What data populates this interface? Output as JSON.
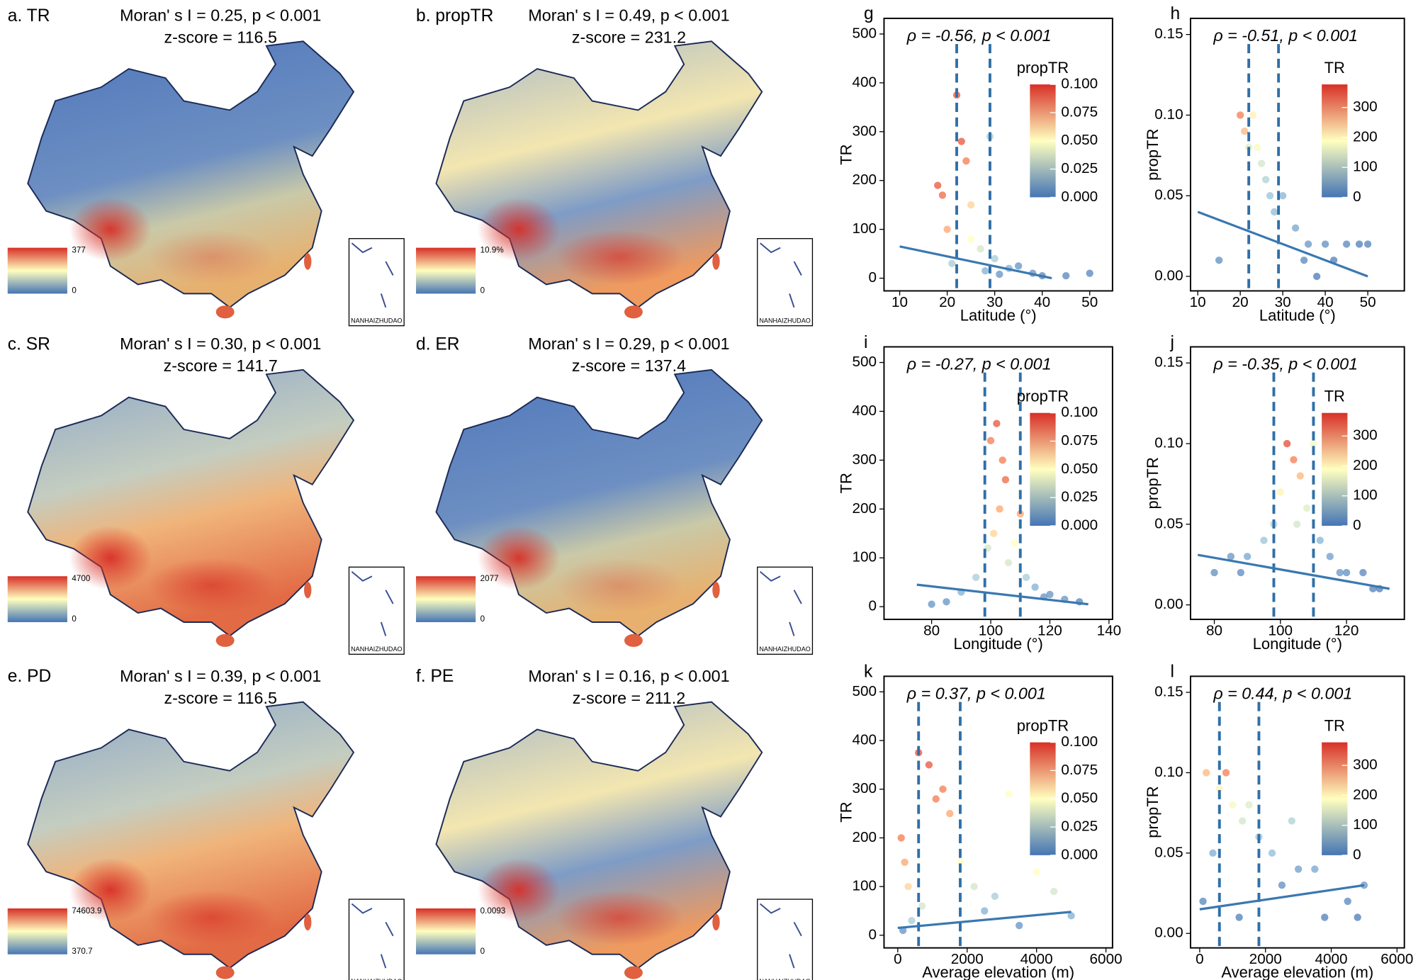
{
  "chart_data": [
    {
      "type": "map",
      "label": "a. TR",
      "stat": "Moran' s I = 0.25, p < 0.001",
      "zscore": "z-score = 116.5",
      "legend_max": "377",
      "legend_min": "0",
      "inset_label": "NANHAIZHUDAO"
    },
    {
      "type": "map",
      "label": "b. propTR",
      "stat": "Moran' s I = 0.49, p < 0.001",
      "zscore": "z-score = 231.2",
      "legend_max": "10.9%",
      "legend_min": "0",
      "inset_label": "NANHAIZHUDAO"
    },
    {
      "type": "map",
      "label": "c. SR",
      "stat": "Moran' s I = 0.30, p < 0.001",
      "zscore": "z-score = 141.7",
      "legend_max": "4700",
      "legend_min": "0",
      "inset_label": "NANHAIZHUDAO"
    },
    {
      "type": "map",
      "label": "d. ER",
      "stat": "Moran' s I = 0.29, p < 0.001",
      "zscore": "z-score = 137.4",
      "legend_max": "2077",
      "legend_min": "0",
      "inset_label": "NANHAIZHUDAO"
    },
    {
      "type": "map",
      "label": "e. PD",
      "stat": "Moran' s I = 0.39, p < 0.001",
      "zscore": "z-score = 116.5",
      "legend_max": "74603.9",
      "legend_min": "370.7",
      "inset_label": "NANHAIZHUDAO"
    },
    {
      "type": "map",
      "label": "f. PE",
      "stat": "Moran' s I = 0.16, p < 0.001",
      "zscore": "z-score = 211.2",
      "legend_max": "0.0093",
      "legend_min": "0",
      "inset_label": "NANHAIZHUDAO"
    },
    {
      "type": "scatter",
      "label": "g",
      "title": "ρ = -0.56, p < 0.001",
      "xlabel": "Latitude (°)",
      "ylabel": "TR",
      "xlim": [
        6.7,
        54.8
      ],
      "ylim": [
        -26,
        532
      ],
      "xticks": [
        10,
        20,
        30,
        40,
        50
      ],
      "yticks": [
        0,
        100,
        200,
        300,
        400,
        500
      ],
      "vlines": [
        22,
        29
      ],
      "fit": {
        "x": [
          10,
          42
        ],
        "y": [
          65,
          0
        ]
      },
      "colorbar": {
        "title": "propTR",
        "lim": [
          0,
          0.1
        ],
        "ticks": [
          {
            "value": 0,
            "label": "0.000"
          },
          {
            "value": 0.025,
            "label": "0.025"
          },
          {
            "value": 0.05,
            "label": "0.050"
          },
          {
            "value": 0.075,
            "label": "0.075"
          },
          {
            "value": 0.1,
            "label": "0.100"
          }
        ]
      },
      "x": [
        18,
        19,
        20,
        22,
        23,
        24,
        25,
        27,
        29,
        30,
        33,
        35,
        38,
        40,
        45,
        50,
        25,
        28,
        31,
        21
      ],
      "y": [
        190,
        170,
        100,
        375,
        280,
        240,
        150,
        60,
        290,
        40,
        20,
        25,
        10,
        5,
        5,
        10,
        80,
        15,
        8,
        30
      ],
      "c": [
        0.09,
        0.085,
        0.07,
        0.09,
        0.09,
        0.08,
        0.06,
        0.04,
        0.03,
        0.03,
        0.02,
        0.01,
        0.01,
        0.005,
        0.005,
        0.005,
        0.05,
        0.02,
        0.01,
        0.03
      ]
    },
    {
      "type": "scatter",
      "label": "h",
      "title": "ρ = -0.51, p < 0.001",
      "xlabel": "Latitude (°)",
      "ylabel": "propTR",
      "xlim": [
        8.3,
        58.6
      ],
      "ylim": [
        -0.009,
        0.16
      ],
      "xticks": [
        10,
        20,
        30,
        40,
        50
      ],
      "yticks": [
        {
          "value": 0,
          "label": "0.00"
        },
        {
          "value": 0.05,
          "label": "0.05"
        },
        {
          "value": 0.1,
          "label": "0.10"
        },
        {
          "value": 0.15,
          "label": "0.15"
        }
      ],
      "vlines": [
        22,
        29
      ],
      "fit": {
        "x": [
          10,
          50
        ],
        "y": [
          0.04,
          0
        ]
      },
      "colorbar": {
        "title": "TR",
        "lim": [
          0,
          377
        ],
        "ticks": [
          0,
          100,
          200,
          300
        ]
      },
      "x": [
        20,
        21,
        23,
        24,
        25,
        26,
        27,
        22,
        30,
        33,
        36,
        40,
        45,
        50,
        28,
        35,
        42,
        48,
        15,
        38
      ],
      "y": [
        0.1,
        0.09,
        0.1,
        0.08,
        0.07,
        0.06,
        0.05,
        0.08,
        0.05,
        0.03,
        0.02,
        0.02,
        0.02,
        0.02,
        0.04,
        0.01,
        0.01,
        0.02,
        0.01,
        0
      ],
      "c": [
        300,
        250,
        200,
        180,
        150,
        120,
        100,
        160,
        80,
        60,
        40,
        30,
        20,
        15,
        90,
        20,
        10,
        10,
        30,
        5
      ]
    },
    {
      "type": "scatter",
      "label": "i",
      "title": "ρ = -0.27, p < 0.001",
      "xlabel": "Longitude (°)",
      "ylabel": "TR",
      "xlim": [
        63.9,
        141.2
      ],
      "ylim": [
        -26,
        532
      ],
      "xticks": [
        80,
        100,
        120,
        140
      ],
      "yticks": [
        0,
        100,
        200,
        300,
        400,
        500
      ],
      "vlines": [
        98,
        110
      ],
      "fit": {
        "x": [
          75,
          133
        ],
        "y": [
          45,
          5
        ]
      },
      "colorbar": {
        "title": "propTR",
        "lim": [
          0,
          0.1
        ],
        "ticks": [
          {
            "value": 0,
            "label": "0.000"
          },
          {
            "value": 0.025,
            "label": "0.025"
          },
          {
            "value": 0.05,
            "label": "0.050"
          },
          {
            "value": 0.075,
            "label": "0.075"
          },
          {
            "value": 0.1,
            "label": "0.100"
          }
        ]
      },
      "x": [
        100,
        102,
        104,
        105,
        103,
        101,
        108,
        110,
        99,
        95,
        90,
        85,
        80,
        115,
        120,
        125,
        130,
        106,
        112,
        118
      ],
      "y": [
        340,
        375,
        300,
        260,
        200,
        150,
        130,
        190,
        120,
        60,
        30,
        10,
        5,
        40,
        25,
        15,
        10,
        90,
        60,
        20
      ],
      "c": [
        0.08,
        0.09,
        0.08,
        0.085,
        0.07,
        0.06,
        0.05,
        0.07,
        0.04,
        0.03,
        0.02,
        0.01,
        0.01,
        0.02,
        0.01,
        0.01,
        0.005,
        0.04,
        0.03,
        0.01
      ]
    },
    {
      "type": "scatter",
      "label": "j",
      "title": "ρ = -0.35, p < 0.001",
      "xlabel": "Longitude (°)",
      "ylabel": "propTR",
      "xlim": [
        72.8,
        137.5
      ],
      "ylim": [
        -0.009,
        0.16
      ],
      "xticks": [
        80,
        100,
        120
      ],
      "yticks": [
        {
          "value": 0,
          "label": "0.00"
        },
        {
          "value": 0.05,
          "label": "0.05"
        },
        {
          "value": 0.1,
          "label": "0.10"
        },
        {
          "value": 0.15,
          "label": "0.15"
        }
      ],
      "vlines": [
        98,
        110
      ],
      "fit": {
        "x": [
          75,
          133
        ],
        "y": [
          0.031,
          0.01
        ]
      },
      "colorbar": {
        "title": "TR",
        "lim": [
          0,
          377
        ],
        "ticks": [
          0,
          100,
          200,
          300
        ]
      },
      "x": [
        102,
        104,
        106,
        100,
        108,
        110,
        98,
        95,
        90,
        85,
        80,
        115,
        120,
        125,
        130,
        112,
        118,
        105,
        88,
        128
      ],
      "y": [
        0.1,
        0.09,
        0.08,
        0.07,
        0.06,
        0.1,
        0.05,
        0.04,
        0.03,
        0.03,
        0.02,
        0.03,
        0.02,
        0.02,
        0.01,
        0.04,
        0.02,
        0.05,
        0.02,
        0.01
      ],
      "c": [
        350,
        300,
        250,
        200,
        160,
        180,
        120,
        100,
        60,
        40,
        30,
        50,
        30,
        20,
        10,
        80,
        40,
        150,
        25,
        15
      ]
    },
    {
      "type": "scatter",
      "label": "k",
      "title": "ρ = 0.37, p < 0.001",
      "xlabel": "Average elevation (m)",
      "ylabel": "TR",
      "xlim": [
        -396,
        6190
      ],
      "ylim": [
        -26,
        532
      ],
      "xticks": [
        0,
        2000,
        4000,
        6000
      ],
      "yticks": [
        0,
        100,
        200,
        300,
        400,
        500
      ],
      "vlines": [
        600,
        1800
      ],
      "fit": {
        "x": [
          0,
          5000
        ],
        "y": [
          15,
          48
        ]
      },
      "colorbar": {
        "title": "propTR",
        "lim": [
          0,
          0.1
        ],
        "ticks": [
          {
            "value": 0,
            "label": "0.000"
          },
          {
            "value": 0.025,
            "label": "0.025"
          },
          {
            "value": 0.05,
            "label": "0.050"
          },
          {
            "value": 0.075,
            "label": "0.075"
          },
          {
            "value": 0.1,
            "label": "0.100"
          }
        ]
      },
      "x": [
        100,
        200,
        300,
        600,
        900,
        1100,
        1300,
        1500,
        1800,
        2200,
        2800,
        3200,
        4000,
        4500,
        5000,
        400,
        700,
        2500,
        3500,
        150
      ],
      "y": [
        200,
        150,
        100,
        375,
        350,
        280,
        300,
        250,
        150,
        100,
        80,
        290,
        130,
        90,
        40,
        30,
        60,
        50,
        20,
        10
      ],
      "c": [
        0.08,
        0.07,
        0.06,
        0.09,
        0.09,
        0.08,
        0.08,
        0.07,
        0.05,
        0.04,
        0.03,
        0.05,
        0.05,
        0.04,
        0.02,
        0.03,
        0.04,
        0.02,
        0.01,
        0.01
      ]
    },
    {
      "type": "scatter",
      "label": "l",
      "title": "ρ = 0.44, p < 0.001",
      "xlabel": "Average elevation (m)",
      "ylabel": "propTR",
      "xlim": [
        -279,
        6223
      ],
      "ylim": [
        -0.009,
        0.16
      ],
      "xticks": [
        0,
        2000,
        4000,
        6000
      ],
      "yticks": [
        {
          "value": 0,
          "label": "0.00"
        },
        {
          "value": 0.05,
          "label": "0.05"
        },
        {
          "value": 0.1,
          "label": "0.10"
        },
        {
          "value": 0.15,
          "label": "0.15"
        }
      ],
      "vlines": [
        600,
        1800
      ],
      "fit": {
        "x": [
          0,
          5000
        ],
        "y": [
          0.015,
          0.03
        ]
      },
      "colorbar": {
        "title": "TR",
        "lim": [
          0,
          377
        ],
        "ticks": [
          0,
          100,
          200,
          300
        ]
      },
      "x": [
        200,
        600,
        800,
        1000,
        1300,
        1500,
        1800,
        2200,
        2800,
        3500,
        4200,
        5000,
        400,
        2500,
        3000,
        4500,
        100,
        1200,
        3800,
        4800
      ],
      "y": [
        0.1,
        0.09,
        0.1,
        0.08,
        0.07,
        0.08,
        0.06,
        0.05,
        0.07,
        0.04,
        0.06,
        0.03,
        0.05,
        0.03,
        0.04,
        0.02,
        0.02,
        0.01,
        0.01,
        0.01
      ],
      "c": [
        250,
        200,
        300,
        180,
        150,
        160,
        100,
        90,
        120,
        60,
        80,
        40,
        70,
        30,
        50,
        20,
        20,
        10,
        10,
        5
      ]
    }
  ]
}
